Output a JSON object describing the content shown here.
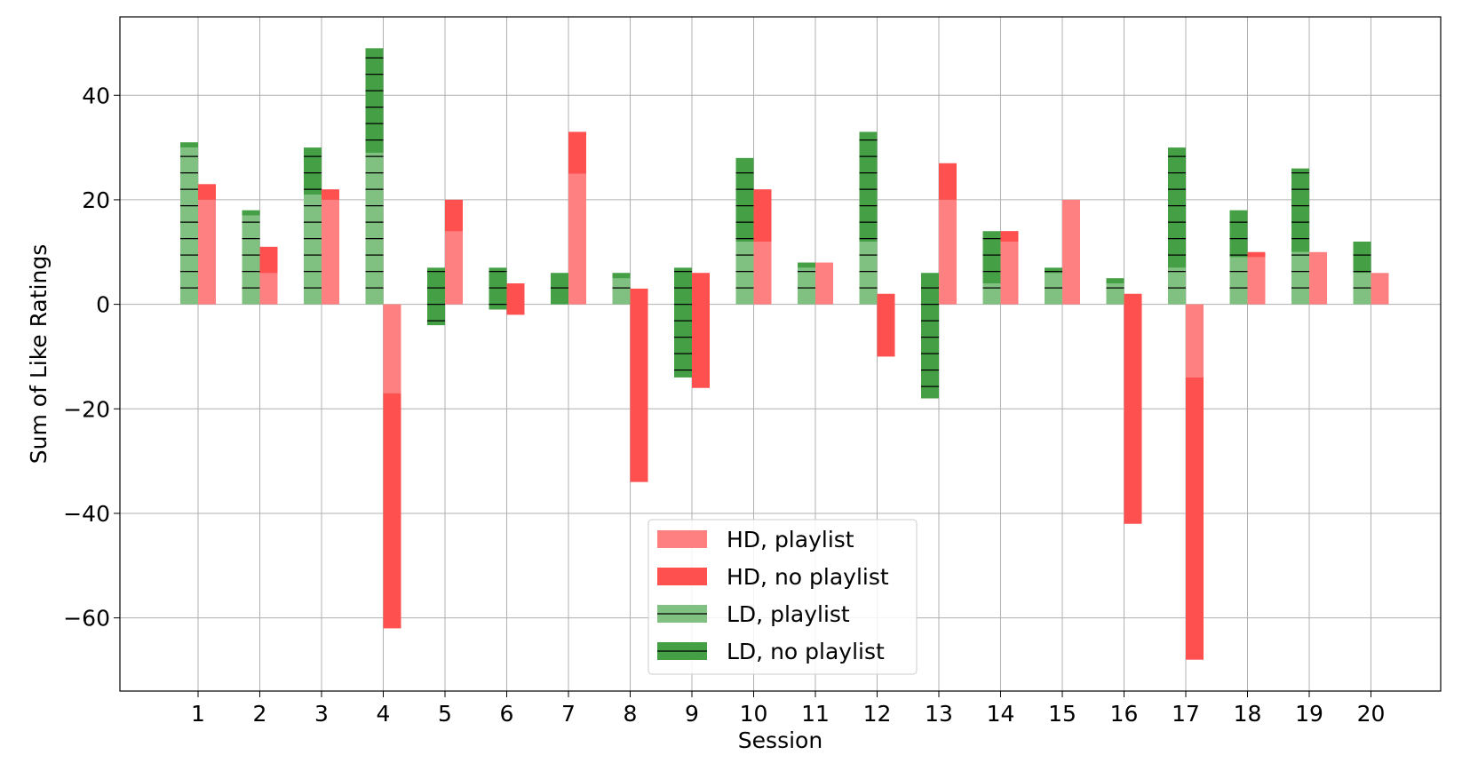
{
  "chart_data": {
    "type": "bar",
    "title": "",
    "xlabel": "Session",
    "ylabel": "Sum of Like Ratings",
    "categories": [
      "1",
      "2",
      "3",
      "4",
      "5",
      "6",
      "7",
      "8",
      "9",
      "10",
      "11",
      "12",
      "13",
      "14",
      "15",
      "16",
      "17",
      "18",
      "19",
      "20"
    ],
    "yticks": [
      40,
      20,
      0,
      -20,
      -40,
      -60
    ],
    "ytick_labels": [
      "40",
      "20",
      "0",
      "−20",
      "−40",
      "−60"
    ],
    "ylim": [
      -74,
      55
    ],
    "grid": true,
    "legend_position": "lower center",
    "series": [
      {
        "name": "HD, playlist",
        "color": "#ff8080",
        "hatch": false,
        "group": "HD",
        "values": [
          20,
          11,
          20,
          -17,
          20,
          4,
          25,
          3,
          6,
          12,
          8,
          2,
          20,
          14,
          20,
          2,
          -14,
          9,
          10,
          6
        ]
      },
      {
        "name": "HD, no playlist",
        "color": "#ff5050",
        "hatch": false,
        "group": "HD",
        "values": [
          3,
          -5,
          2,
          -45,
          -6,
          -6,
          8,
          -37,
          -22,
          10,
          0,
          -12,
          7,
          -2,
          0,
          -44,
          -54,
          1,
          0,
          0
        ]
      },
      {
        "name": "LD, playlist",
        "color": "#80c080",
        "hatch": true,
        "group": "LD",
        "values": [
          30,
          17,
          21,
          29,
          7,
          7,
          6,
          6,
          7,
          12,
          7,
          12,
          6,
          4,
          7,
          4,
          7,
          9,
          10,
          6
        ]
      },
      {
        "name": "LD, no playlist",
        "color": "#45a045",
        "hatch": true,
        "group": "LD",
        "values": [
          1,
          1,
          9,
          20,
          -11,
          -8,
          -6,
          -1,
          -21,
          16,
          1,
          21,
          -24,
          10,
          -1,
          1,
          23,
          9,
          16,
          6
        ]
      }
    ]
  }
}
